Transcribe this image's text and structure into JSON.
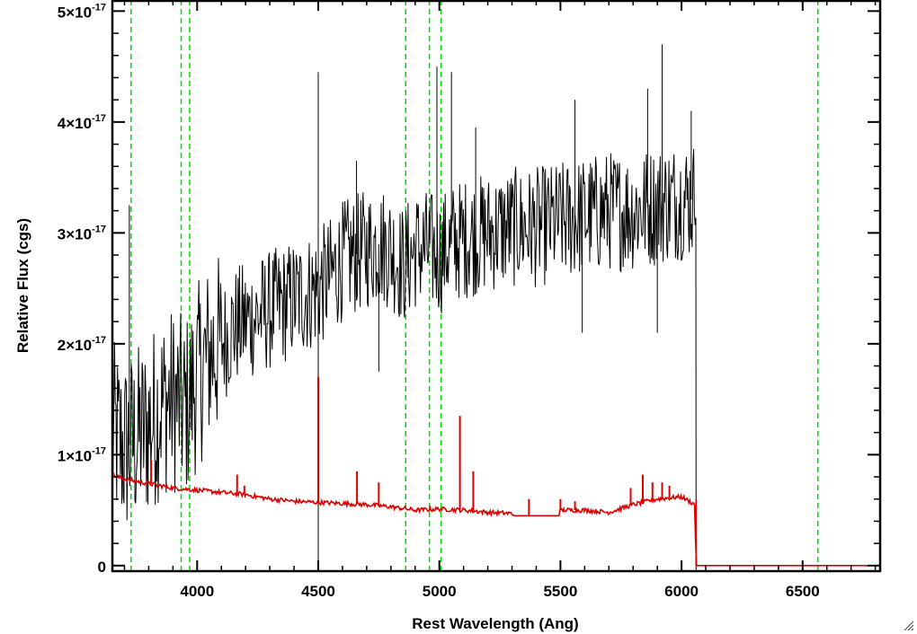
{
  "chart_data": {
    "type": "line",
    "xlabel": "Rest Wavelength (Ang)",
    "ylabel": "Relative Flux (cgs)",
    "xlim": [
      3650,
      6820
    ],
    "ylim": [
      -0.05,
      5.1
    ],
    "y_unit_exponent": -17,
    "x_ticks": [
      4000,
      4500,
      5000,
      5500,
      6000,
      6500
    ],
    "x_tick_labels": [
      "4000",
      "4500",
      "5000",
      "5500",
      "6000",
      "6500"
    ],
    "y_ticks": [
      0,
      1,
      2,
      3,
      4,
      5
    ],
    "y_tick_labels": [
      {
        "base": "0",
        "exp": ""
      },
      {
        "base": "1×10",
        "exp": "-17"
      },
      {
        "base": "2×10",
        "exp": "-17"
      },
      {
        "base": "3×10",
        "exp": "-17"
      },
      {
        "base": "4×10",
        "exp": "-17"
      },
      {
        "base": "5×10",
        "exp": "-17"
      }
    ],
    "grid": false,
    "reference_lines": {
      "color": "#00dd00",
      "style": "dashed",
      "x": [
        3727,
        3934,
        3969,
        4861,
        4959,
        5007,
        6563
      ]
    },
    "series": [
      {
        "color": "#000000",
        "style": "noisy spectrum",
        "x_range": [
          3650,
          6060
        ],
        "points": [
          [
            3650,
            1.2
          ],
          [
            3700,
            1.05
          ],
          [
            3750,
            1.15
          ],
          [
            3800,
            1.25
          ],
          [
            3850,
            1.45
          ],
          [
            3900,
            1.5
          ],
          [
            3950,
            1.4
          ],
          [
            4000,
            1.7
          ],
          [
            4050,
            1.9
          ],
          [
            4100,
            2.0
          ],
          [
            4150,
            2.15
          ],
          [
            4200,
            2.2
          ],
          [
            4250,
            2.25
          ],
          [
            4300,
            2.3
          ],
          [
            4350,
            2.35
          ],
          [
            4400,
            2.4
          ],
          [
            4450,
            2.45
          ],
          [
            4500,
            2.5
          ],
          [
            4550,
            2.6
          ],
          [
            4600,
            2.75
          ],
          [
            4650,
            2.8
          ],
          [
            4700,
            2.85
          ],
          [
            4750,
            2.9
          ],
          [
            4800,
            2.85
          ],
          [
            4850,
            2.7
          ],
          [
            4900,
            2.85
          ],
          [
            4950,
            2.85
          ],
          [
            5000,
            2.8
          ],
          [
            5050,
            2.9
          ],
          [
            5100,
            2.95
          ],
          [
            5200,
            3.0
          ],
          [
            5300,
            3.05
          ],
          [
            5400,
            3.05
          ],
          [
            5500,
            3.1
          ],
          [
            5600,
            3.15
          ],
          [
            5700,
            3.2
          ],
          [
            5800,
            3.2
          ],
          [
            5900,
            3.25
          ],
          [
            6000,
            3.3
          ],
          [
            6050,
            3.3
          ],
          [
            6060,
            3.7
          ]
        ],
        "spikes": [
          {
            "x": 3720,
            "y": 3.25
          },
          {
            "x": 4500,
            "y": 4.45
          },
          {
            "x": 4500,
            "y": -0.05
          },
          {
            "x": 4658,
            "y": 3.65
          },
          {
            "x": 4750,
            "y": 1.75
          },
          {
            "x": 4990,
            "y": 4.5
          },
          {
            "x": 5050,
            "y": 4.45
          },
          {
            "x": 5150,
            "y": 3.95
          },
          {
            "x": 5560,
            "y": 4.2
          },
          {
            "x": 5590,
            "y": 2.1
          },
          {
            "x": 5860,
            "y": 4.3
          },
          {
            "x": 5900,
            "y": 2.1
          },
          {
            "x": 5920,
            "y": 4.7
          },
          {
            "x": 6040,
            "y": 4.1
          }
        ]
      },
      {
        "color": "#dd0000",
        "style": "model continuum",
        "points": [
          [
            3650,
            0.82
          ],
          [
            3700,
            0.78
          ],
          [
            3800,
            0.74
          ],
          [
            3900,
            0.7
          ],
          [
            4000,
            0.68
          ],
          [
            4100,
            0.66
          ],
          [
            4200,
            0.64
          ],
          [
            4300,
            0.6
          ],
          [
            4400,
            0.58
          ],
          [
            4500,
            0.57
          ],
          [
            4600,
            0.56
          ],
          [
            4700,
            0.55
          ],
          [
            4800,
            0.53
          ],
          [
            4900,
            0.5
          ],
          [
            5000,
            0.51
          ],
          [
            5100,
            0.5
          ],
          [
            5200,
            0.48
          ],
          [
            5300,
            0.47
          ],
          [
            5310,
            0.45
          ],
          [
            5490,
            0.45
          ],
          [
            5500,
            0.5
          ],
          [
            5600,
            0.5
          ],
          [
            5700,
            0.48
          ],
          [
            5800,
            0.55
          ],
          [
            5900,
            0.6
          ],
          [
            6000,
            0.62
          ],
          [
            6055,
            0.55
          ],
          [
            6060,
            0.0
          ],
          [
            6820,
            0.0
          ]
        ],
        "spikes": [
          {
            "x": 3810,
            "y": 0.95
          },
          {
            "x": 4165,
            "y": 0.82
          },
          {
            "x": 4195,
            "y": 0.72
          },
          {
            "x": 4500,
            "y": 1.7
          },
          {
            "x": 4660,
            "y": 0.85
          },
          {
            "x": 4750,
            "y": 0.75
          },
          {
            "x": 5085,
            "y": 1.35
          },
          {
            "x": 5140,
            "y": 0.85
          },
          {
            "x": 5370,
            "y": 0.6
          },
          {
            "x": 5500,
            "y": 0.6
          },
          {
            "x": 5560,
            "y": 0.58
          },
          {
            "x": 5790,
            "y": 0.7
          },
          {
            "x": 5840,
            "y": 0.82
          },
          {
            "x": 5880,
            "y": 0.75
          },
          {
            "x": 5920,
            "y": 0.75
          },
          {
            "x": 5950,
            "y": 0.72
          }
        ]
      }
    ]
  }
}
